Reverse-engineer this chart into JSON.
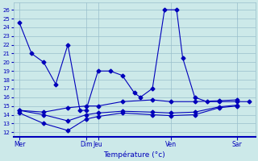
{
  "title": "Température (°c)",
  "bg_color": "#cce9e9",
  "line_color": "#0000bb",
  "grid_color": "#99bfcc",
  "ylim": [
    11.5,
    26.8
  ],
  "yticks": [
    12,
    13,
    14,
    15,
    16,
    17,
    18,
    19,
    20,
    21,
    22,
    23,
    24,
    25,
    26
  ],
  "xlim": [
    0,
    20
  ],
  "xtick_positions": [
    0.5,
    6.0,
    7.0,
    13.0,
    18.5
  ],
  "xtick_labels": [
    "Mer",
    "Dim",
    "Jeu",
    "Ven",
    "Sar"
  ],
  "series": [
    {
      "x": [
        0.5,
        1.5,
        2.5,
        3.5,
        4.5,
        5.5,
        6.0,
        7.0,
        8.0,
        9.0,
        10.0,
        10.5,
        11.5,
        12.5,
        13.5,
        14.0,
        15.0,
        16.0,
        17.0,
        18.5,
        19.5
      ],
      "y": [
        24.5,
        21.0,
        20.0,
        17.5,
        22.0,
        14.5,
        14.5,
        19.0,
        19.0,
        18.5,
        16.5,
        16.0,
        17.0,
        26.0,
        26.0,
        20.5,
        16.0,
        15.5,
        15.5,
        15.5,
        15.5
      ]
    },
    {
      "x": [
        0.5,
        2.5,
        4.5,
        6.0,
        7.0,
        9.0,
        11.5,
        13.0,
        15.0,
        17.0,
        18.5
      ],
      "y": [
        14.5,
        14.3,
        14.8,
        15.0,
        15.0,
        15.5,
        15.7,
        15.5,
        15.5,
        15.6,
        15.7
      ]
    },
    {
      "x": [
        0.5,
        2.5,
        4.5,
        6.0,
        7.0,
        9.0,
        11.5,
        13.0,
        15.0,
        17.0,
        18.5
      ],
      "y": [
        14.5,
        14.0,
        13.3,
        14.0,
        14.2,
        14.4,
        14.3,
        14.2,
        14.3,
        14.9,
        15.1
      ]
    },
    {
      "x": [
        0.5,
        2.5,
        4.5,
        6.0,
        7.0,
        9.0,
        11.5,
        13.0,
        15.0,
        17.0,
        18.5
      ],
      "y": [
        14.2,
        13.0,
        12.2,
        13.5,
        13.8,
        14.2,
        14.0,
        13.9,
        14.0,
        14.8,
        15.0
      ]
    }
  ]
}
